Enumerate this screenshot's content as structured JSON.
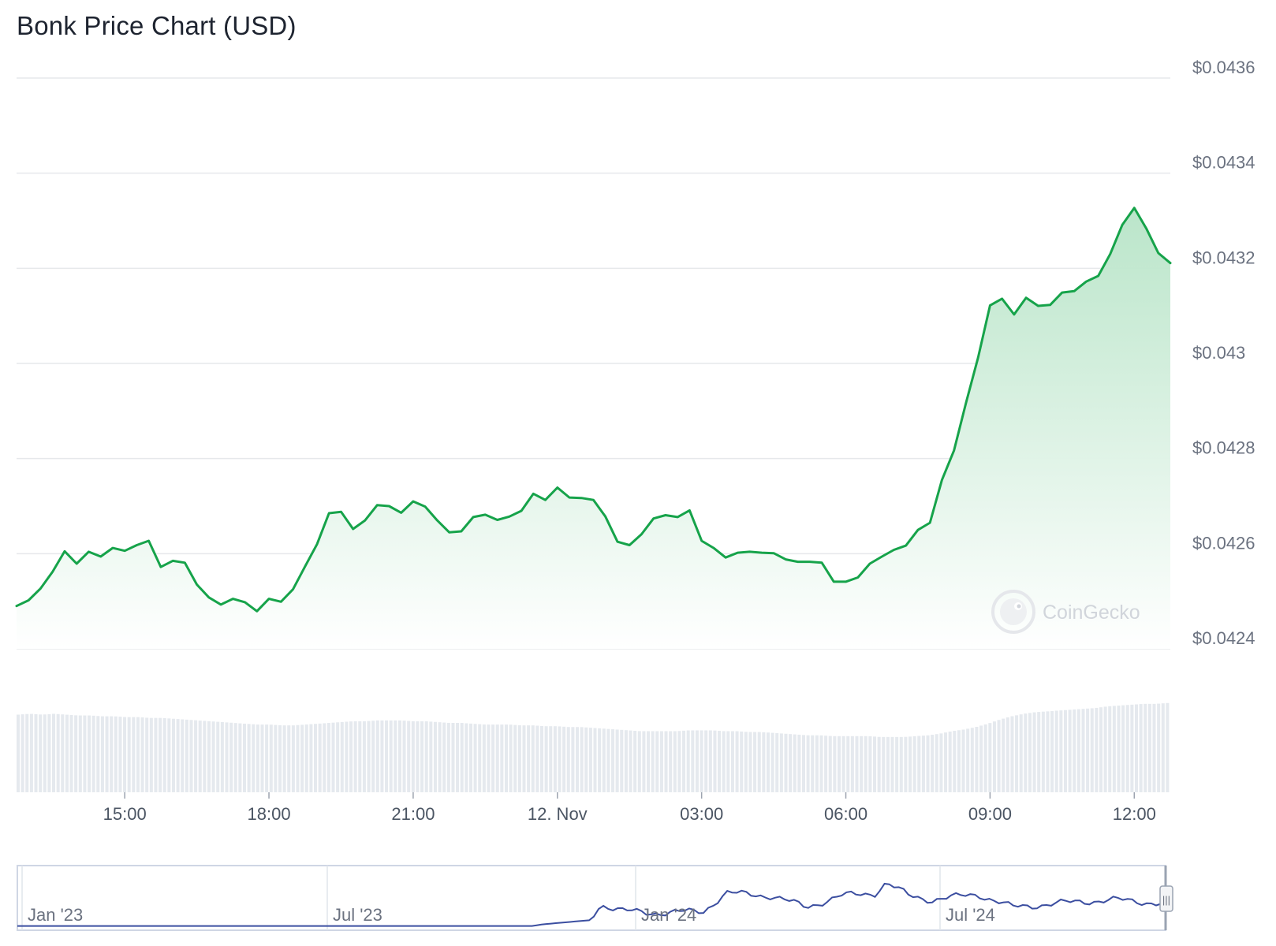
{
  "title": "Bonk Price Chart (USD)",
  "watermark": "CoinGecko",
  "colors": {
    "line": "#16a34a",
    "area_top": "#b7e4c7",
    "area_bottom": "#ffffff",
    "volume": "#e5e9ee",
    "nav_line": "#3b4ea0",
    "grid": "#e6e8eb"
  },
  "chart_data": {
    "type": "area",
    "xlabel": "",
    "ylabel": "",
    "y_ticks": [
      {
        "v": 0.0436,
        "label": "$0.0436"
      },
      {
        "v": 0.0434,
        "label": "$0.0434"
      },
      {
        "v": 0.0432,
        "label": "$0.0432"
      },
      {
        "v": 0.043,
        "label": "$0.043"
      },
      {
        "v": 0.0428,
        "label": "$0.0428"
      },
      {
        "v": 0.0426,
        "label": "$0.0426"
      },
      {
        "v": 0.0424,
        "label": "$0.0424"
      }
    ],
    "ylim": [
      0.0424,
      0.0436
    ],
    "x_start": "11 Nov 12:45",
    "x_end": "12 Nov 12:45",
    "x_ticks": [
      {
        "t": "11 Nov 15:00",
        "label": "15:00"
      },
      {
        "t": "11 Nov 18:00",
        "label": "18:00"
      },
      {
        "t": "11 Nov 21:00",
        "label": "21:00"
      },
      {
        "t": "12 Nov 00:00",
        "label": "12. Nov"
      },
      {
        "t": "12 Nov 03:00",
        "label": "03:00"
      },
      {
        "t": "12 Nov 06:00",
        "label": "06:00"
      },
      {
        "t": "12 Nov 09:00",
        "label": "09:00"
      },
      {
        "t": "12 Nov 12:00",
        "label": "12:00"
      }
    ],
    "series": [
      {
        "points": [
          [
            "11 Nov 12:45",
            0.04249
          ],
          [
            "11 Nov 13:00",
            0.042502
          ],
          [
            "11 Nov 13:15",
            0.042527
          ],
          [
            "11 Nov 13:30",
            0.042562
          ],
          [
            "11 Nov 13:45",
            0.042605
          ],
          [
            "11 Nov 14:00",
            0.042579
          ],
          [
            "11 Nov 14:15",
            0.042604
          ],
          [
            "11 Nov 14:30",
            0.042594
          ],
          [
            "11 Nov 14:45",
            0.042612
          ],
          [
            "11 Nov 15:00",
            0.042606
          ],
          [
            "11 Nov 15:15",
            0.042618
          ],
          [
            "11 Nov 15:30",
            0.042627
          ],
          [
            "11 Nov 15:45",
            0.042572
          ],
          [
            "11 Nov 16:00",
            0.042585
          ],
          [
            "11 Nov 16:15",
            0.042581
          ],
          [
            "11 Nov 16:30",
            0.042535
          ],
          [
            "11 Nov 16:45",
            0.042508
          ],
          [
            "11 Nov 17:00",
            0.042493
          ],
          [
            "11 Nov 17:15",
            0.042505
          ],
          [
            "11 Nov 17:30",
            0.042498
          ],
          [
            "11 Nov 17:45",
            0.042479
          ],
          [
            "11 Nov 18:00",
            0.042505
          ],
          [
            "11 Nov 18:15",
            0.042499
          ],
          [
            "11 Nov 18:30",
            0.042525
          ],
          [
            "11 Nov 18:45",
            0.042573
          ],
          [
            "11 Nov 19:00",
            0.04262
          ],
          [
            "11 Nov 19:15",
            0.042685
          ],
          [
            "11 Nov 19:30",
            0.042688
          ],
          [
            "11 Nov 19:45",
            0.042652
          ],
          [
            "11 Nov 20:00",
            0.04267
          ],
          [
            "11 Nov 20:15",
            0.042702
          ],
          [
            "11 Nov 20:30",
            0.0427
          ],
          [
            "11 Nov 20:45",
            0.042686
          ],
          [
            "11 Nov 21:00",
            0.04271
          ],
          [
            "11 Nov 21:15",
            0.042699
          ],
          [
            "11 Nov 21:30",
            0.04267
          ],
          [
            "11 Nov 21:45",
            0.042645
          ],
          [
            "11 Nov 22:00",
            0.042647
          ],
          [
            "11 Nov 22:15",
            0.042677
          ],
          [
            "11 Nov 22:30",
            0.042682
          ],
          [
            "11 Nov 22:45",
            0.042671
          ],
          [
            "11 Nov 23:00",
            0.042678
          ],
          [
            "11 Nov 23:15",
            0.04269
          ],
          [
            "11 Nov 23:30",
            0.042726
          ],
          [
            "11 Nov 23:45",
            0.042713
          ],
          [
            "12 Nov 00:00",
            0.042739
          ],
          [
            "12 Nov 00:15",
            0.042718
          ],
          [
            "12 Nov 00:30",
            0.042717
          ],
          [
            "12 Nov 00:45",
            0.042713
          ],
          [
            "12 Nov 01:00",
            0.042678
          ],
          [
            "12 Nov 01:15",
            0.042625
          ],
          [
            "12 Nov 01:30",
            0.042618
          ],
          [
            "12 Nov 01:45",
            0.042641
          ],
          [
            "12 Nov 02:00",
            0.042674
          ],
          [
            "12 Nov 02:15",
            0.042681
          ],
          [
            "12 Nov 02:30",
            0.042677
          ],
          [
            "12 Nov 02:45",
            0.042691
          ],
          [
            "12 Nov 03:00",
            0.042627
          ],
          [
            "12 Nov 03:15",
            0.042612
          ],
          [
            "12 Nov 03:30",
            0.042592
          ],
          [
            "12 Nov 03:45",
            0.042602
          ],
          [
            "12 Nov 04:00",
            0.042604
          ],
          [
            "12 Nov 04:15",
            0.042602
          ],
          [
            "12 Nov 04:30",
            0.042601
          ],
          [
            "12 Nov 04:45",
            0.042588
          ],
          [
            "12 Nov 05:00",
            0.042583
          ],
          [
            "12 Nov 05:15",
            0.042583
          ],
          [
            "12 Nov 05:30",
            0.042581
          ],
          [
            "12 Nov 05:45",
            0.042541
          ],
          [
            "12 Nov 06:00",
            0.042541
          ],
          [
            "12 Nov 06:15",
            0.04255
          ],
          [
            "12 Nov 06:30",
            0.042579
          ],
          [
            "12 Nov 06:45",
            0.042594
          ],
          [
            "12 Nov 07:00",
            0.042608
          ],
          [
            "12 Nov 07:15",
            0.042617
          ],
          [
            "12 Nov 07:30",
            0.04265
          ],
          [
            "12 Nov 07:45",
            0.042665
          ],
          [
            "12 Nov 08:00",
            0.042755
          ],
          [
            "12 Nov 08:15",
            0.042817
          ],
          [
            "12 Nov 08:30",
            0.042917
          ],
          [
            "12 Nov 08:45",
            0.043012
          ],
          [
            "12 Nov 09:00",
            0.043122
          ],
          [
            "12 Nov 09:15",
            0.043136
          ],
          [
            "12 Nov 09:30",
            0.043103
          ],
          [
            "12 Nov 09:45",
            0.043138
          ],
          [
            "12 Nov 10:00",
            0.043121
          ],
          [
            "12 Nov 10:15",
            0.043123
          ],
          [
            "12 Nov 10:30",
            0.043149
          ],
          [
            "12 Nov 10:45",
            0.043152
          ],
          [
            "12 Nov 11:00",
            0.043172
          ],
          [
            "12 Nov 11:15",
            0.043184
          ],
          [
            "12 Nov 11:30",
            0.04323
          ],
          [
            "12 Nov 11:45",
            0.043291
          ],
          [
            "12 Nov 12:00",
            0.043327
          ],
          [
            "12 Nov 12:15",
            0.043284
          ],
          [
            "12 Nov 12:30",
            0.043232
          ],
          [
            "12 Nov 12:45",
            0.043211
          ]
        ]
      }
    ],
    "volume_relative": [
      0.9,
      0.91,
      0.9,
      0.91,
      0.9,
      0.89,
      0.89,
      0.88,
      0.88,
      0.87,
      0.87,
      0.86,
      0.86,
      0.85,
      0.84,
      0.83,
      0.82,
      0.81,
      0.8,
      0.79,
      0.78,
      0.78,
      0.77,
      0.77,
      0.78,
      0.79,
      0.8,
      0.81,
      0.82,
      0.82,
      0.83,
      0.83,
      0.83,
      0.82,
      0.82,
      0.81,
      0.8,
      0.8,
      0.79,
      0.78,
      0.78,
      0.78,
      0.77,
      0.77,
      0.76,
      0.76,
      0.75,
      0.75,
      0.74,
      0.73,
      0.72,
      0.71,
      0.7,
      0.7,
      0.7,
      0.7,
      0.71,
      0.71,
      0.71,
      0.7,
      0.7,
      0.69,
      0.69,
      0.68,
      0.67,
      0.66,
      0.65,
      0.65,
      0.64,
      0.64,
      0.64,
      0.64,
      0.63,
      0.63,
      0.63,
      0.64,
      0.65,
      0.67,
      0.7,
      0.72,
      0.75,
      0.79,
      0.84,
      0.88,
      0.91,
      0.93,
      0.94,
      0.95,
      0.96,
      0.97,
      0.98,
      1.0,
      1.01,
      1.02,
      1.03,
      1.03,
      1.04
    ]
  },
  "navigator": {
    "labels": [
      "Jan '23",
      "Jul '23",
      "Jan '24",
      "Jul '24"
    ],
    "handle_glyph": "|||",
    "profile": [
      [
        0,
        0.02
      ],
      [
        0.1,
        0.02
      ],
      [
        0.3,
        0.02
      ],
      [
        0.45,
        0.02
      ],
      [
        0.46,
        0.05
      ],
      [
        0.5,
        0.12
      ],
      [
        0.51,
        0.4
      ],
      [
        0.53,
        0.28
      ],
      [
        0.56,
        0.25
      ],
      [
        0.6,
        0.28
      ],
      [
        0.62,
        0.6
      ],
      [
        0.66,
        0.55
      ],
      [
        0.69,
        0.35
      ],
      [
        0.72,
        0.55
      ],
      [
        0.75,
        0.6
      ],
      [
        0.76,
        0.78
      ],
      [
        0.78,
        0.55
      ],
      [
        0.8,
        0.48
      ],
      [
        0.84,
        0.58
      ],
      [
        0.87,
        0.35
      ],
      [
        0.9,
        0.4
      ],
      [
        0.93,
        0.45
      ],
      [
        0.96,
        0.48
      ],
      [
        1.0,
        0.42
      ]
    ]
  }
}
